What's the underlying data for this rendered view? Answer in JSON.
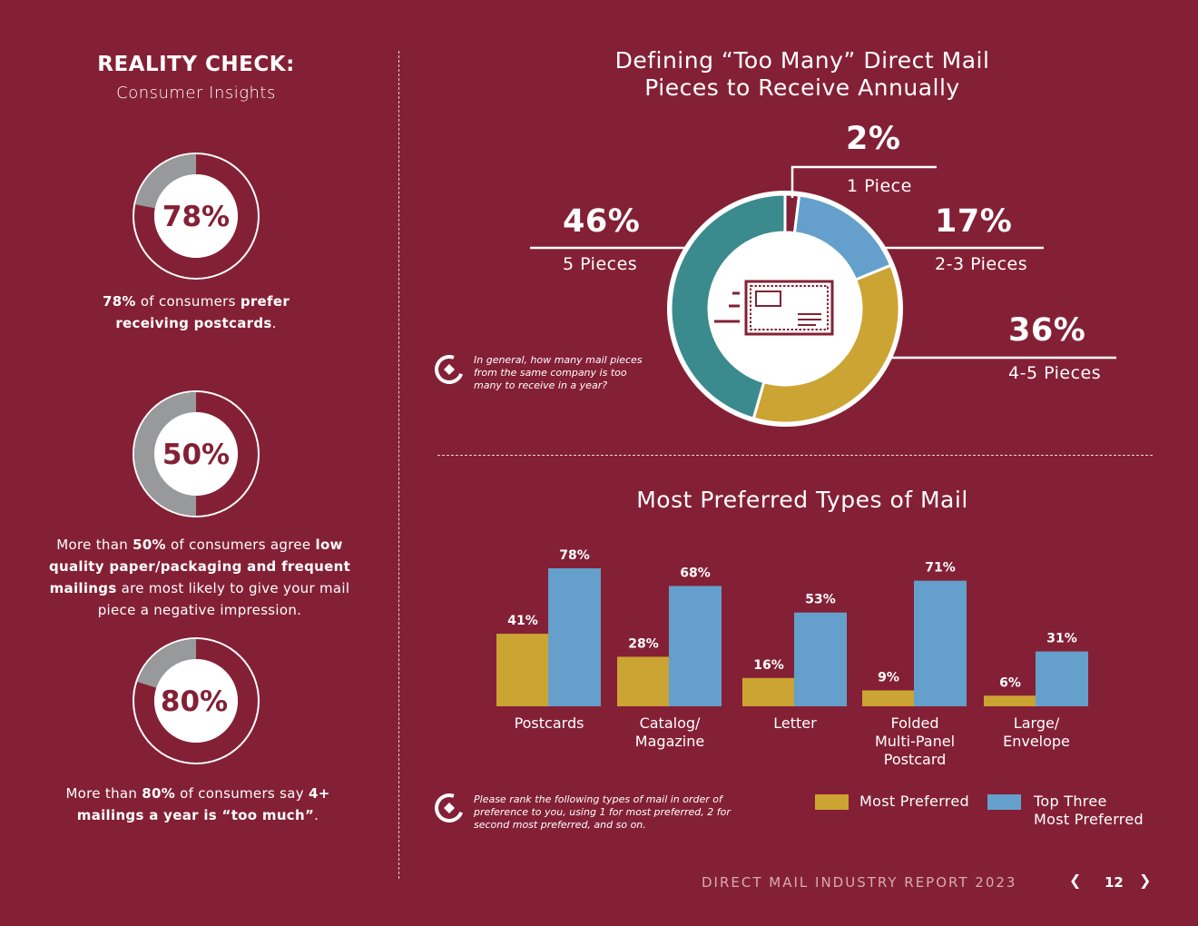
{
  "left": {
    "title": "REALITY CHECK:",
    "subtitle": "Consumer Insights",
    "stats": [
      {
        "value": 78,
        "label": "78%",
        "text_html": "<b>78%</b> of consumers <b>prefer receiving postcards</b>."
      },
      {
        "value": 50,
        "label": "50%",
        "text_html": "More than <b>50%</b> of consumers agree <b>low quality paper/packaging and frequent mailings</b> are most likely to give your mail piece a negative impression."
      },
      {
        "value": 80,
        "label": "80%",
        "text_html": "More than <b>80%</b> of consumers say <b>4+ mailings a year is “too much”</b>."
      }
    ]
  },
  "donut_chart": {
    "title_line1": "Defining “Too Many” Direct Mail",
    "title_line2": "Pieces to Receive Annually",
    "question": "In general, how many mail pieces from the same company is too many to receive in a year?",
    "segments": [
      {
        "pct": "2%",
        "label": "1 Piece"
      },
      {
        "pct": "17%",
        "label": "2-3 Pieces"
      },
      {
        "pct": "36%",
        "label": "4-5 Pieces"
      },
      {
        "pct": "46%",
        "label": "5 Pieces"
      }
    ]
  },
  "bar_chart": {
    "title": "Most Preferred Types of Mail",
    "question": "Please rank the following types of mail in order of preference to you, using 1 for most preferred, 2 for second most preferred, and so on.",
    "legend": [
      {
        "label": "Most Preferred"
      },
      {
        "label_line1": "Top Three",
        "label_line2": "Most Preferred"
      }
    ]
  },
  "chart_data": [
    {
      "type": "pie",
      "title": "Defining “Too Many” Direct Mail Pieces to Receive Annually",
      "categories": [
        "1 Piece",
        "2-3 Pieces",
        "4-5 Pieces",
        "5 Pieces"
      ],
      "values": [
        2,
        17,
        36,
        46
      ],
      "colors": [
        "#842035",
        "#64a0cb",
        "#cca433",
        "#3b8a8d"
      ]
    },
    {
      "type": "bar",
      "title": "Most Preferred Types of Mail",
      "categories": [
        [
          "Postcards"
        ],
        [
          "Catalog/",
          "Magazine"
        ],
        [
          "Letter"
        ],
        [
          "Folded",
          "Multi-Panel",
          "Postcard"
        ],
        [
          "Large/",
          "Envelope"
        ]
      ],
      "series": [
        {
          "name": "Most Preferred",
          "values": [
            41,
            28,
            16,
            9,
            6
          ],
          "color": "#cca433"
        },
        {
          "name": "Top Three Most Preferred",
          "values": [
            78,
            68,
            53,
            71,
            31
          ],
          "color": "#64a0cb"
        }
      ],
      "ylim": [
        0,
        80
      ]
    }
  ],
  "colors": {
    "background": "#842035",
    "gold": "#cca433",
    "blue": "#64a0cb",
    "teal": "#3b8a8d",
    "gray": "#97999b"
  },
  "footer": {
    "report": "DIRECT MAIL INDUSTRY REPORT 2023",
    "page": "12",
    "prev_icon": "chevron-left-icon",
    "next_icon": "chevron-right-icon"
  }
}
